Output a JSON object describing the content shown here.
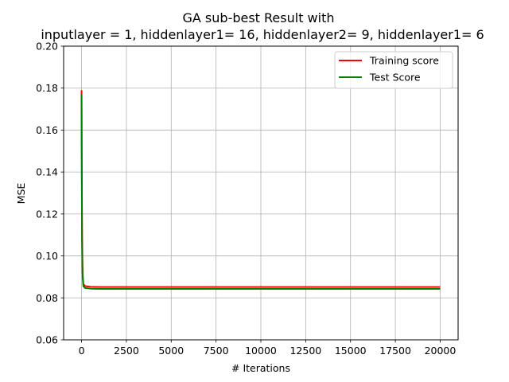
{
  "chart_data": {
    "type": "line",
    "title": "GA sub-best Result with",
    "subtitle": "inputlayer = 1, hiddenlayer1= 16, hiddenlayer2= 9, hiddenlayer1= 6",
    "xlabel": "# Iterations",
    "ylabel": "MSE",
    "xlim": [
      -1000,
      21000
    ],
    "ylim": [
      0.06,
      0.2
    ],
    "x_ticks": [
      0,
      2500,
      5000,
      7500,
      10000,
      12500,
      15000,
      17500,
      20000
    ],
    "x_tick_labels": [
      "0",
      "2500",
      "5000",
      "7500",
      "10000",
      "12500",
      "15000",
      "17500",
      "20000"
    ],
    "y_ticks": [
      0.06,
      0.08,
      0.1,
      0.12,
      0.14,
      0.16,
      0.18,
      0.2
    ],
    "y_tick_labels": [
      "0.06",
      "0.08",
      "0.10",
      "0.12",
      "0.14",
      "0.16",
      "0.18",
      "0.20"
    ],
    "grid": true,
    "legend_position": "top-right",
    "series": [
      {
        "name": "Training score",
        "color": "#ff0000",
        "x": [
          0,
          10,
          30,
          60,
          100,
          200,
          500,
          1000,
          5000,
          10000,
          15000,
          20000
        ],
        "y": [
          0.179,
          0.15,
          0.11,
          0.092,
          0.0866,
          0.0856,
          0.0853,
          0.0852,
          0.0852,
          0.0852,
          0.0852,
          0.0852
        ]
      },
      {
        "name": "Test Score",
        "color": "#008000",
        "x": [
          0,
          10,
          30,
          60,
          100,
          200,
          500,
          1000,
          5000,
          10000,
          15000,
          20000
        ],
        "y": [
          0.177,
          0.145,
          0.105,
          0.09,
          0.0855,
          0.0847,
          0.0844,
          0.0843,
          0.0843,
          0.0843,
          0.0843,
          0.0843
        ]
      }
    ]
  }
}
